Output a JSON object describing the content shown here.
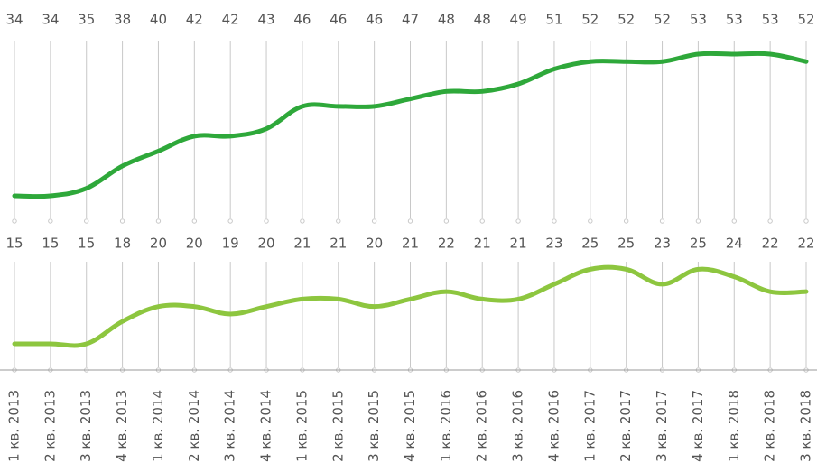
{
  "chart_data": {
    "type": "line",
    "categories": [
      "1 кв. 2013",
      "2 кв. 2013",
      "3 кв. 2013",
      "4 кв. 2013",
      "1 кв. 2014",
      "2 кв. 2014",
      "3 кв. 2014",
      "4 кв. 2014",
      "1 кв. 2015",
      "2 кв. 2015",
      "3 кв. 2015",
      "4 кв. 2015",
      "1 кв. 2016",
      "2 кв. 2016",
      "3 кв. 2016",
      "4 кв. 2016",
      "1 кв. 2017",
      "2 кв. 2017",
      "3 кв. 2017",
      "4 кв. 2017",
      "1 кв. 2018",
      "2 кв. 2018",
      "3 кв. 2018"
    ],
    "series": [
      {
        "color": "#2ea83a",
        "values": [
          34,
          34,
          35,
          38,
          40,
          42,
          42,
          43,
          46,
          46,
          46,
          47,
          48,
          48,
          49,
          51,
          52,
          52,
          52,
          53,
          53,
          53,
          52
        ]
      },
      {
        "color": "#8dc63f",
        "values": [
          15,
          15,
          15,
          18,
          20,
          20,
          19,
          20,
          21,
          21,
          20,
          21,
          22,
          21,
          21,
          23,
          25,
          25,
          23,
          25,
          24,
          22,
          22
        ]
      }
    ]
  }
}
